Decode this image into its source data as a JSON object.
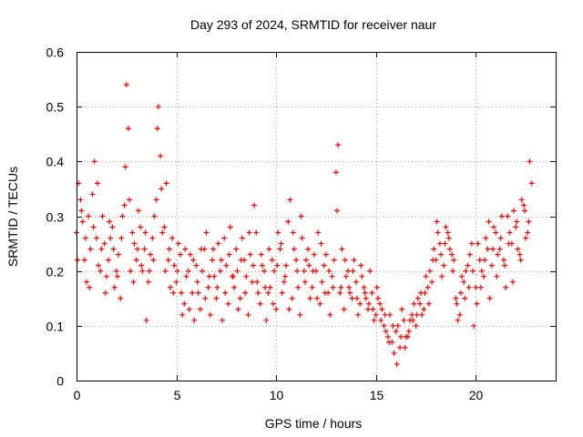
{
  "chart_data": {
    "type": "scatter",
    "title": "Day 293 of 2024, SRMTID for receiver naur",
    "xlabel": "GPS time / hours",
    "ylabel": "SRMTID / TECUs",
    "xlim": [
      0,
      24
    ],
    "ylim": [
      0,
      0.6
    ],
    "xticks": [
      "0",
      "5",
      "10",
      "15",
      "20"
    ],
    "yticks": [
      "0",
      "0.1",
      "0.2",
      "0.3",
      "0.4",
      "0.5",
      "0.6"
    ],
    "marker": "+",
    "color": "#ff0000",
    "grid": true,
    "series": [
      {
        "name": "SRMTID",
        "x": [
          0.0,
          0.2,
          0.4,
          0.6,
          0.8,
          1.0,
          1.2,
          1.4,
          1.6,
          1.8,
          2.0,
          2.2,
          2.4,
          2.6,
          2.8,
          3.0,
          3.2,
          3.4,
          3.6,
          3.8,
          4.0,
          4.2,
          4.4,
          4.6,
          4.8,
          5.0,
          5.2,
          5.4,
          5.6,
          5.8,
          6.0,
          6.2,
          6.4,
          6.6,
          6.8,
          7.0,
          7.2,
          7.4,
          7.6,
          7.8,
          8.0,
          8.2,
          8.4,
          8.6,
          8.8,
          9.0,
          9.2,
          9.4,
          9.6,
          9.8,
          10.0,
          10.2,
          10.4,
          10.6,
          10.8,
          11.0,
          11.2,
          11.4,
          11.6,
          11.8,
          12.0,
          12.2,
          12.4,
          12.6,
          12.8,
          13.0,
          13.2,
          13.4,
          13.6,
          13.8,
          14.0,
          14.2,
          14.4,
          14.6,
          14.8,
          15.0,
          15.2,
          15.4,
          15.6,
          15.8,
          16.0,
          16.2,
          16.4,
          16.6,
          16.8,
          17.0,
          17.2,
          17.4,
          17.6,
          17.8,
          18.0,
          18.2,
          18.4,
          18.6,
          18.8,
          19.0,
          19.2,
          19.4,
          19.6,
          19.8,
          20.0,
          20.2,
          20.4,
          20.6,
          20.8,
          21.0,
          21.2,
          21.4,
          21.6,
          21.8,
          22.0,
          22.2,
          22.4,
          22.6,
          22.8
        ],
        "y": [
          0.27,
          0.33,
          0.22,
          0.3,
          0.34,
          0.26,
          0.2,
          0.25,
          0.22,
          0.28,
          0.2,
          0.15,
          0.32,
          0.46,
          0.27,
          0.22,
          0.28,
          0.24,
          0.18,
          0.26,
          0.33,
          0.41,
          0.28,
          0.22,
          0.26,
          0.18,
          0.23,
          0.14,
          0.2,
          0.16,
          0.21,
          0.13,
          0.24,
          0.17,
          0.22,
          0.15,
          0.2,
          0.26,
          0.14,
          0.19,
          0.24,
          0.15,
          0.22,
          0.12,
          0.18,
          0.27,
          0.14,
          0.2,
          0.16,
          0.22,
          0.13,
          0.24,
          0.18,
          0.29,
          0.15,
          0.22,
          0.12,
          0.2,
          0.24,
          0.17,
          0.2,
          0.14,
          0.21,
          0.16,
          0.19,
          0.38,
          0.16,
          0.13,
          0.2,
          0.15,
          0.18,
          0.14,
          0.17,
          0.13,
          0.16,
          0.12,
          0.14,
          0.1,
          0.08,
          0.07,
          0.09,
          0.06,
          0.11,
          0.08,
          0.12,
          0.1,
          0.14,
          0.13,
          0.17,
          0.18,
          0.22,
          0.25,
          0.21,
          0.27,
          0.23,
          0.15,
          0.12,
          0.18,
          0.21,
          0.25,
          0.17,
          0.22,
          0.19,
          0.24,
          0.21,
          0.27,
          0.24,
          0.22,
          0.3,
          0.25,
          0.28,
          0.23,
          0.32,
          0.27,
          0.36
        ]
      },
      {
        "name": "SRMTID",
        "x": [
          0.1,
          0.3,
          0.5,
          0.7,
          0.9,
          1.1,
          1.3,
          1.5,
          1.7,
          1.9,
          2.1,
          2.3,
          2.5,
          2.7,
          2.9,
          3.1,
          3.3,
          3.5,
          3.7,
          3.9,
          4.1,
          4.3,
          4.5,
          4.7,
          4.9,
          5.1,
          5.3,
          5.5,
          5.7,
          5.9,
          6.1,
          6.3,
          6.5,
          6.7,
          6.9,
          7.1,
          7.3,
          7.5,
          7.7,
          7.9,
          8.1,
          8.3,
          8.5,
          8.7,
          8.9,
          9.1,
          9.3,
          9.5,
          9.7,
          9.9,
          10.1,
          10.3,
          10.5,
          10.7,
          10.9,
          11.1,
          11.3,
          11.5,
          11.7,
          11.9,
          12.1,
          12.3,
          12.5,
          12.7,
          12.9,
          13.1,
          13.3,
          13.5,
          13.7,
          13.9,
          14.1,
          14.3,
          14.5,
          14.7,
          14.9,
          15.1,
          15.3,
          15.5,
          15.7,
          15.9,
          16.1,
          16.3,
          16.5,
          16.7,
          16.9,
          17.1,
          17.3,
          17.5,
          17.7,
          17.9,
          18.1,
          18.3,
          18.5,
          18.7,
          18.9,
          19.1,
          19.3,
          19.5,
          19.7,
          19.9,
          20.1,
          20.3,
          20.5,
          20.7,
          20.9,
          21.1,
          21.3,
          21.5,
          21.7,
          21.9,
          22.1,
          22.3,
          22.5,
          22.7
        ],
        "y": [
          0.36,
          0.29,
          0.18,
          0.24,
          0.4,
          0.21,
          0.3,
          0.19,
          0.26,
          0.17,
          0.23,
          0.3,
          0.54,
          0.2,
          0.25,
          0.31,
          0.2,
          0.11,
          0.23,
          0.3,
          0.5,
          0.27,
          0.36,
          0.17,
          0.21,
          0.25,
          0.12,
          0.19,
          0.23,
          0.11,
          0.16,
          0.2,
          0.27,
          0.12,
          0.19,
          0.25,
          0.11,
          0.21,
          0.28,
          0.17,
          0.13,
          0.26,
          0.19,
          0.23,
          0.32,
          0.16,
          0.21,
          0.11,
          0.17,
          0.2,
          0.27,
          0.16,
          0.21,
          0.33,
          0.24,
          0.17,
          0.26,
          0.22,
          0.15,
          0.23,
          0.27,
          0.18,
          0.23,
          0.12,
          0.22,
          0.43,
          0.24,
          0.19,
          0.16,
          0.22,
          0.12,
          0.19,
          0.15,
          0.2,
          0.11,
          0.15,
          0.13,
          0.09,
          0.12,
          0.05,
          0.1,
          0.13,
          0.08,
          0.11,
          0.14,
          0.15,
          0.12,
          0.19,
          0.2,
          0.24,
          0.27,
          0.19,
          0.28,
          0.24,
          0.22,
          0.11,
          0.19,
          0.2,
          0.23,
          0.1,
          0.25,
          0.2,
          0.26,
          0.15,
          0.28,
          0.23,
          0.3,
          0.17,
          0.27,
          0.31,
          0.24,
          0.33,
          0.26,
          0.4
        ]
      },
      {
        "name": "SRMTID",
        "x": [
          0.05,
          0.25,
          0.45,
          0.65,
          0.85,
          1.05,
          1.25,
          1.45,
          1.65,
          1.85,
          2.05,
          2.25,
          2.45,
          2.65,
          2.85,
          3.05,
          3.25,
          3.45,
          3.65,
          3.85,
          4.05,
          4.25,
          4.45,
          4.65,
          4.85,
          5.05,
          5.25,
          5.45,
          5.65,
          5.85,
          6.05,
          6.25,
          6.45,
          6.65,
          6.85,
          7.05,
          7.25,
          7.45,
          7.65,
          7.85,
          8.05,
          8.25,
          8.45,
          8.65,
          8.85,
          9.05,
          9.25,
          9.45,
          9.65,
          9.85,
          10.05,
          10.25,
          10.45,
          10.65,
          10.85,
          11.05,
          11.25,
          11.45,
          11.65,
          11.85,
          12.05,
          12.25,
          12.45,
          12.65,
          12.85,
          13.05,
          13.25,
          13.45,
          13.65,
          13.85,
          14.05,
          14.25,
          14.45,
          14.65,
          14.85,
          15.05,
          15.25,
          15.45,
          15.65,
          15.85,
          16.05,
          16.25,
          16.45,
          16.65,
          16.85,
          17.05,
          17.25,
          17.45,
          17.65,
          17.85,
          18.05,
          18.25,
          18.45,
          18.65,
          18.85,
          19.05,
          19.25,
          19.45,
          19.65,
          19.85,
          20.05,
          20.25,
          20.45,
          20.65,
          20.85,
          21.05,
          21.25,
          21.45,
          21.65,
          21.85,
          22.05,
          22.25,
          22.45,
          22.65
        ],
        "y": [
          0.22,
          0.31,
          0.26,
          0.17,
          0.28,
          0.36,
          0.24,
          0.16,
          0.29,
          0.24,
          0.19,
          0.26,
          0.39,
          0.33,
          0.18,
          0.24,
          0.21,
          0.27,
          0.2,
          0.22,
          0.46,
          0.35,
          0.2,
          0.24,
          0.16,
          0.2,
          0.16,
          0.24,
          0.13,
          0.22,
          0.18,
          0.24,
          0.15,
          0.19,
          0.24,
          0.17,
          0.22,
          0.16,
          0.23,
          0.19,
          0.2,
          0.22,
          0.16,
          0.27,
          0.21,
          0.18,
          0.23,
          0.17,
          0.24,
          0.14,
          0.21,
          0.25,
          0.19,
          0.13,
          0.27,
          0.2,
          0.3,
          0.18,
          0.21,
          0.2,
          0.15,
          0.25,
          0.16,
          0.2,
          0.17,
          0.31,
          0.17,
          0.22,
          0.17,
          0.2,
          0.15,
          0.21,
          0.16,
          0.14,
          0.13,
          0.17,
          0.11,
          0.12,
          0.07,
          0.1,
          0.03,
          0.08,
          0.06,
          0.09,
          0.11,
          0.12,
          0.16,
          0.16,
          0.14,
          0.22,
          0.29,
          0.23,
          0.25,
          0.26,
          0.2,
          0.14,
          0.16,
          0.15,
          0.17,
          0.2,
          0.14,
          0.17,
          0.22,
          0.29,
          0.24,
          0.19,
          0.26,
          0.21,
          0.25,
          0.18,
          0.29,
          0.22,
          0.31,
          0.29
        ]
      }
    ]
  }
}
